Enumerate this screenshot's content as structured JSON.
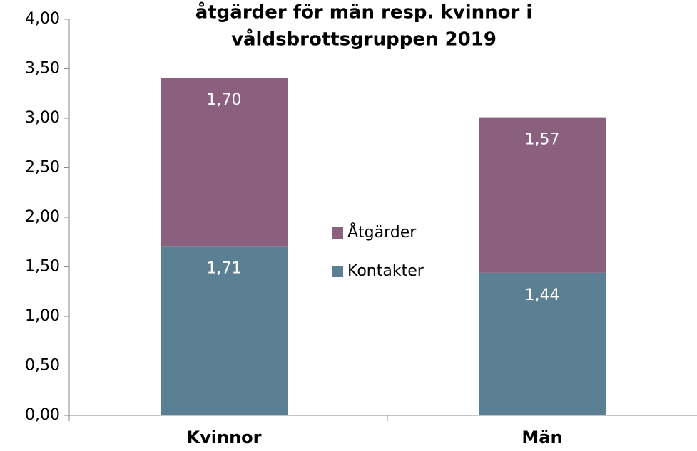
{
  "chart_data": {
    "type": "stacked_bar",
    "title": [
      "åtgärder för män resp. kvinnor i",
      "våldsbrottsgruppen 2019"
    ],
    "categories": [
      "Kvinnor",
      "Män"
    ],
    "series": [
      {
        "name": "Kontakter",
        "color": "#5b7f93",
        "values": [
          1.71,
          1.44
        ],
        "value_labels": [
          "1,71",
          "1,44"
        ]
      },
      {
        "name": "Åtgärder",
        "color": "#8b5f7e",
        "values": [
          1.7,
          1.57
        ],
        "value_labels": [
          "1,70",
          "1,57"
        ]
      }
    ],
    "ylim": [
      0,
      4
    ],
    "yticks": [
      {
        "value": 0,
        "label": "0,00"
      },
      {
        "value": 0.5,
        "label": "0,50"
      },
      {
        "value": 1,
        "label": "1,00"
      },
      {
        "value": 1.5,
        "label": "1,50"
      },
      {
        "value": 2,
        "label": "2,00"
      },
      {
        "value": 2.5,
        "label": "2,50"
      },
      {
        "value": 3,
        "label": "3,00"
      },
      {
        "value": 3.5,
        "label": "3,50"
      },
      {
        "value": 4,
        "label": "4,00"
      }
    ],
    "legend": "center"
  }
}
